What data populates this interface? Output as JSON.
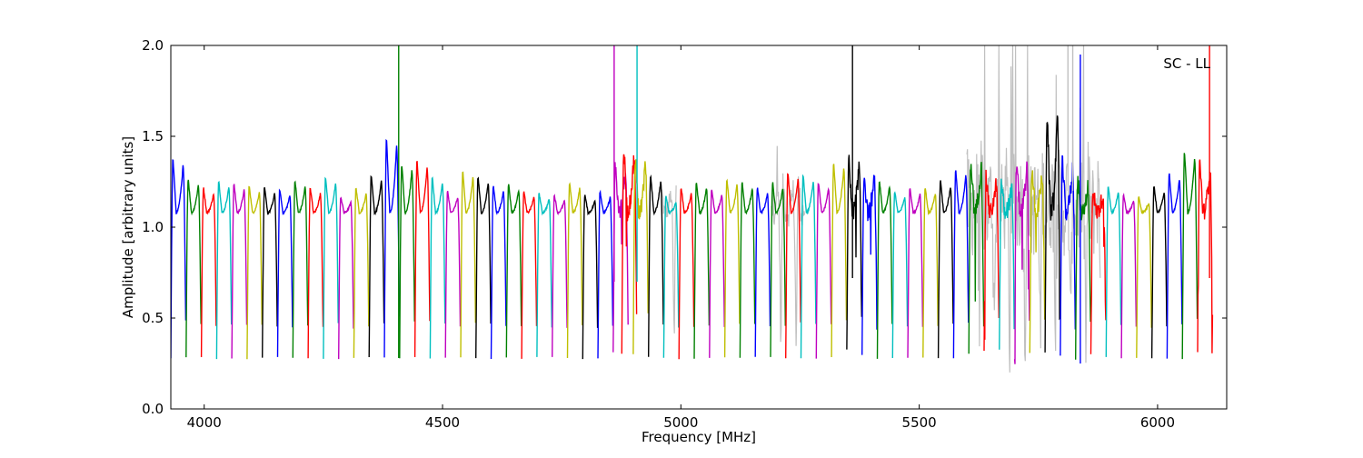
{
  "chart_data": {
    "type": "line",
    "title": "",
    "annotation": "SC - LL",
    "xlabel": "Frequency [MHz]",
    "ylabel": "Amplitude [arbitrary units]",
    "xlim": [
      3930,
      6145
    ],
    "ylim": [
      0.0,
      2.0
    ],
    "xticks": [
      4000,
      4500,
      5000,
      5500,
      6000
    ],
    "yticks": [
      0.0,
      0.5,
      1.0,
      1.5,
      2.0
    ],
    "xtick_labels": [
      "4000",
      "4500",
      "5000",
      "5500",
      "6000"
    ],
    "ytick_labels": [
      "0.0",
      "0.5",
      "1.0",
      "1.5",
      "2.0"
    ],
    "grid": false,
    "legend": "none",
    "series_colors": [
      "#0000ff",
      "#008000",
      "#ff0000",
      "#00bfbf",
      "#bf00bf",
      "#bfbf00",
      "#000000"
    ],
    "background_trace_color": "#c0c0c0",
    "spectral_window": {
      "width_mhz": 32,
      "peak": 1.2,
      "null_depth": 0.28
    },
    "windows": [
      {
        "start": 3930,
        "color": "#0000ff",
        "peak": 1.38
      },
      {
        "start": 3962,
        "color": "#008000",
        "peak": 1.27
      },
      {
        "start": 3994,
        "color": "#ff0000",
        "peak": 1.22
      },
      {
        "start": 4026,
        "color": "#00bfbf",
        "peak": 1.26
      },
      {
        "start": 4058,
        "color": "#bf00bf",
        "peak": 1.24
      },
      {
        "start": 4090,
        "color": "#bfbf00",
        "peak": 1.23
      },
      {
        "start": 4122,
        "color": "#000000",
        "peak": 1.22
      },
      {
        "start": 4154,
        "color": "#0000ff",
        "peak": 1.21
      },
      {
        "start": 4186,
        "color": "#008000",
        "peak": 1.26
      },
      {
        "start": 4218,
        "color": "#ff0000",
        "peak": 1.22
      },
      {
        "start": 4250,
        "color": "#00bfbf",
        "peak": 1.28
      },
      {
        "start": 4282,
        "color": "#bf00bf",
        "peak": 1.17
      },
      {
        "start": 4314,
        "color": "#bfbf00",
        "peak": 1.22
      },
      {
        "start": 4346,
        "color": "#000000",
        "peak": 1.29
      },
      {
        "start": 4378,
        "color": "#0000ff",
        "peak": 1.49
      },
      {
        "start": 4410,
        "color": "#008000",
        "peak": 1.35
      },
      {
        "start": 4442,
        "color": "#ff0000",
        "peak": 1.37
      },
      {
        "start": 4474,
        "color": "#00bfbf",
        "peak": 1.28
      },
      {
        "start": 4506,
        "color": "#bf00bf",
        "peak": 1.2
      },
      {
        "start": 4538,
        "color": "#bfbf00",
        "peak": 1.31
      },
      {
        "start": 4570,
        "color": "#000000",
        "peak": 1.28
      },
      {
        "start": 4602,
        "color": "#0000ff",
        "peak": 1.23
      },
      {
        "start": 4634,
        "color": "#008000",
        "peak": 1.24
      },
      {
        "start": 4666,
        "color": "#ff0000",
        "peak": 1.2
      },
      {
        "start": 4698,
        "color": "#00bfbf",
        "peak": 1.19
      },
      {
        "start": 4730,
        "color": "#bf00bf",
        "peak": 1.18
      },
      {
        "start": 4762,
        "color": "#bfbf00",
        "peak": 1.25
      },
      {
        "start": 4794,
        "color": "#000000",
        "peak": 1.18
      },
      {
        "start": 4826,
        "color": "#0000ff",
        "peak": 1.2
      },
      {
        "start": 4858,
        "color": "#bf00bf",
        "peak": 1.35
      },
      {
        "start": 4876,
        "color": "#ff0000",
        "peak": 1.44
      },
      {
        "start": 4900,
        "color": "#bfbf00",
        "peak": 1.4
      },
      {
        "start": 4932,
        "color": "#000000",
        "peak": 1.29
      },
      {
        "start": 4964,
        "color": "#00bfbf",
        "peak": 1.17
      },
      {
        "start": 4996,
        "color": "#ff0000",
        "peak": 1.22
      },
      {
        "start": 5028,
        "color": "#008000",
        "peak": 1.25
      },
      {
        "start": 5060,
        "color": "#bf00bf",
        "peak": 1.21
      },
      {
        "start": 5092,
        "color": "#bfbf00",
        "peak": 1.27
      },
      {
        "start": 5124,
        "color": "#008000",
        "peak": 1.25
      },
      {
        "start": 5156,
        "color": "#0000ff",
        "peak": 1.22
      },
      {
        "start": 5188,
        "color": "#008000",
        "peak": 1.25
      },
      {
        "start": 5220,
        "color": "#ff0000",
        "peak": 1.3
      },
      {
        "start": 5252,
        "color": "#00bfbf",
        "peak": 1.29
      },
      {
        "start": 5284,
        "color": "#bf00bf",
        "peak": 1.25
      },
      {
        "start": 5316,
        "color": "#bfbf00",
        "peak": 1.36
      },
      {
        "start": 5348,
        "color": "#000000",
        "peak": 1.37
      },
      {
        "start": 5380,
        "color": "#0000ff",
        "peak": 1.3
      },
      {
        "start": 5412,
        "color": "#008000",
        "peak": 1.26
      },
      {
        "start": 5444,
        "color": "#00bfbf",
        "peak": 1.2
      },
      {
        "start": 5476,
        "color": "#bf00bf",
        "peak": 1.22
      },
      {
        "start": 5508,
        "color": "#bfbf00",
        "peak": 1.22
      },
      {
        "start": 5540,
        "color": "#000000",
        "peak": 1.26
      },
      {
        "start": 5572,
        "color": "#0000ff",
        "peak": 1.32
      },
      {
        "start": 5604,
        "color": "#008000",
        "peak": 1.38
      },
      {
        "start": 5636,
        "color": "#ff0000",
        "peak": 1.28
      },
      {
        "start": 5668,
        "color": "#00bfbf",
        "peak": 1.25
      },
      {
        "start": 5700,
        "color": "#bf00bf",
        "peak": 1.36
      },
      {
        "start": 5732,
        "color": "#bfbf00",
        "peak": 1.32
      },
      {
        "start": 5764,
        "color": "#000000",
        "peak": 1.63
      },
      {
        "start": 5796,
        "color": "#0000ff",
        "peak": 1.36
      },
      {
        "start": 5828,
        "color": "#008000",
        "peak": 1.26
      },
      {
        "start": 5860,
        "color": "#ff0000",
        "peak": 1.22
      },
      {
        "start": 5892,
        "color": "#00bfbf",
        "peak": 1.23
      },
      {
        "start": 5924,
        "color": "#bf00bf",
        "peak": 1.18
      },
      {
        "start": 5956,
        "color": "#bfbf00",
        "peak": 1.17
      },
      {
        "start": 5988,
        "color": "#000000",
        "peak": 1.23
      },
      {
        "start": 6020,
        "color": "#0000ff",
        "peak": 1.3
      },
      {
        "start": 6052,
        "color": "#008000",
        "peak": 1.42
      },
      {
        "start": 6084,
        "color": "#ff0000",
        "peak": 1.37
      }
    ],
    "spikes": [
      {
        "x": 4408,
        "color": "#008000",
        "y0": 0.28,
        "y1": 2.0
      },
      {
        "x": 4860,
        "color": "#bf00bf",
        "y0": 0.7,
        "y1": 2.0
      },
      {
        "x": 4908,
        "color": "#00bfbf",
        "y0": 0.7,
        "y1": 2.0
      },
      {
        "x": 5360,
        "color": "#000000",
        "y0": 0.72,
        "y1": 2.0
      },
      {
        "x": 6109,
        "color": "#ff0000",
        "y0": 0.72,
        "y1": 2.0
      },
      {
        "x": 5812,
        "color": "#c0c0c0",
        "y0": 1.2,
        "y1": 2.0
      },
      {
        "x": 5822,
        "color": "#c0c0c0",
        "y0": 1.2,
        "y1": 2.0
      },
      {
        "x": 5838,
        "color": "#0000ff",
        "y0": 0.25,
        "y1": 1.95
      }
    ]
  }
}
